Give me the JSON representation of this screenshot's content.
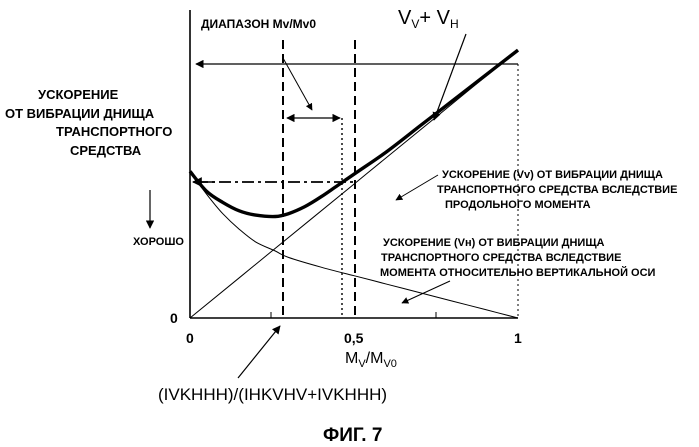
{
  "chart_data": {
    "type": "line",
    "title": "",
    "xlabel": "M_V / M_V0",
    "ylabel": "УСКОРЕНИЕ ОТ ВИБРАЦИИ ДНИЩА ТРАНСПОРТНОГО СРЕДСТВА",
    "xlim": [
      0,
      1
    ],
    "ylim": [
      0,
      1
    ],
    "x_ticks": [
      "0",
      "0,5",
      "1"
    ],
    "y_ticks": [
      "0"
    ],
    "grid": false,
    "legend": "none",
    "series": [
      {
        "name": "V_V + V_H",
        "x": [
          0,
          0.05,
          0.1,
          0.15,
          0.2,
          0.26,
          0.3,
          0.35,
          0.4,
          0.45,
          0.5,
          0.6,
          0.7,
          0.8,
          0.9,
          1.0
        ],
        "y": [
          0.52,
          0.45,
          0.41,
          0.38,
          0.365,
          0.36,
          0.37,
          0.395,
          0.43,
          0.47,
          0.51,
          0.59,
          0.68,
          0.77,
          0.86,
          0.95
        ]
      },
      {
        "name": "Vv",
        "x": [
          0,
          0.25,
          0.5,
          0.75,
          1.0
        ],
        "y": [
          0,
          0.2375,
          0.475,
          0.7125,
          0.95
        ]
      },
      {
        "name": "Vн",
        "x": [
          0,
          0.05,
          0.1,
          0.15,
          0.2,
          0.26,
          0.3,
          0.4,
          0.5,
          0.6,
          0.7,
          0.8,
          0.9,
          1.0
        ],
        "y": [
          0.52,
          0.44,
          0.37,
          0.315,
          0.27,
          0.2375,
          0.215,
          0.18,
          0.15,
          0.12,
          0.09,
          0.06,
          0.03,
          0
        ]
      }
    ],
    "markers": {
      "optimum_x": 0.28,
      "range_x": [
        0.46,
        0.5
      ]
    }
  },
  "labels": {
    "range_label": "ДИАПАЗОН Mv/Mv0",
    "sum_label": {
      "v1": "V",
      "s1": "V",
      "plus": "+ V",
      "s2": "H"
    },
    "y_title": [
      "УСКОРЕНИЕ",
      "ОТ ВИБРАЦИИ ДНИЩА",
      "ТРАНСПОРТНОГО",
      "СРЕДСТВА"
    ],
    "good_label": "ХОРОШО",
    "vv_annotation": [
      "УСКОРЕНИЕ (Vv) ОТ ВИБРАЦИИ ДНИЩА",
      "ТРАНСПОРТНОГО СРЕДСТВА ВСЛЕДСТВИЕ",
      "ПРОДОЛЬНОГО МОМЕНТА"
    ],
    "vh_annotation": [
      "УСКОРЕНИЕ (Vн) ОТ ВИБРАЦИИ ДНИЩА",
      "ТРАНСПОРТНОГО СРЕДСТВА ВСЛЕДСТВИЕ",
      "МОМЕНТА ОТНОСИТЕЛЬНО ВЕРТИКАЛЬНОЙ ОСИ"
    ],
    "x_axis_label": {
      "m1": "M",
      "s1": "V",
      "slash": "/",
      "m2": "M",
      "s2": "V0"
    },
    "formula": "(IVKHHH)/(IHKVHV+IVKHHH)",
    "figure_caption": "ФИГ. 7"
  }
}
